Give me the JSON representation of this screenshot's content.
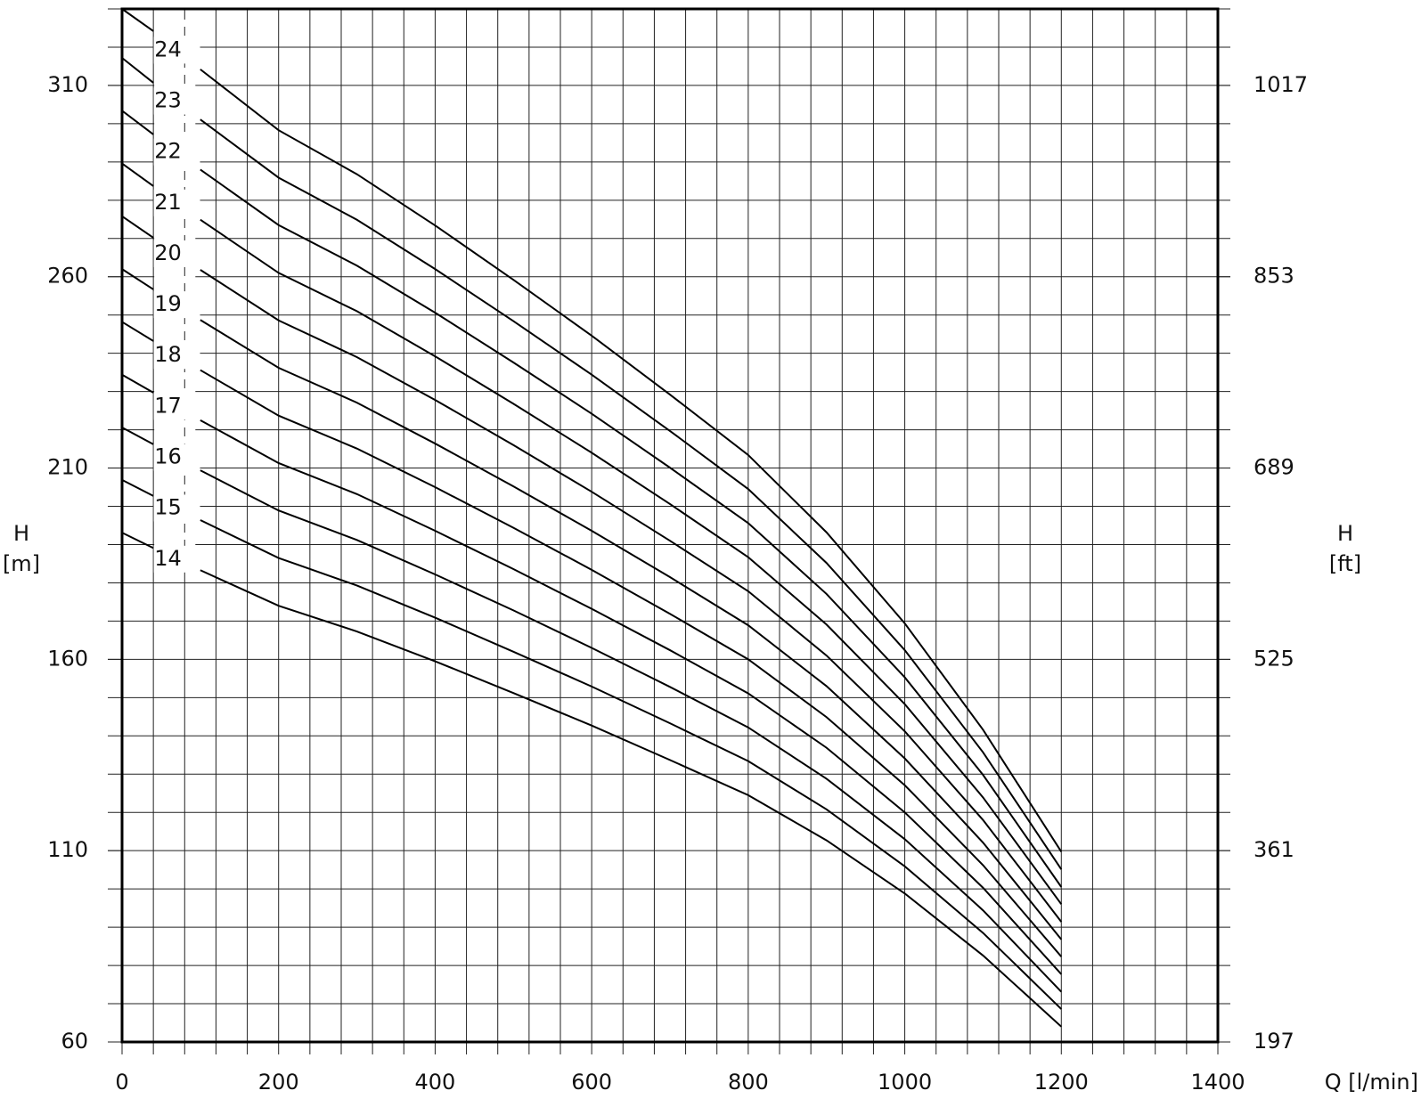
{
  "chart_data": {
    "type": "line",
    "xlabel": "Q [l/min]",
    "ylabel": "H",
    "yunit": "[m]",
    "y2label": "H",
    "y2unit": "[ft]",
    "x": [
      0,
      40,
      70,
      100,
      200,
      300,
      400,
      500,
      600,
      700,
      800,
      900,
      1000,
      1100,
      1200
    ],
    "series": [
      {
        "name": "14",
        "color": "#000000",
        "values": [
          193.1,
          189.1,
          null,
          183.3,
          174.0,
          167.3,
          159.5,
          151.2,
          142.7,
          133.7,
          124.5,
          112.7,
          98.8,
          82.6,
          64.0
        ]
      },
      {
        "name": "15",
        "color": "#000000",
        "values": [
          206.9,
          202.7,
          null,
          196.4,
          186.5,
          179.3,
          170.9,
          162.0,
          152.9,
          143.3,
          133.4,
          120.8,
          105.9,
          88.5,
          68.6
        ]
      },
      {
        "name": "16",
        "color": "#000000",
        "values": [
          220.6,
          216.2,
          null,
          209.4,
          198.9,
          191.2,
          182.2,
          172.8,
          163.0,
          152.8,
          142.2,
          128.8,
          113.0,
          94.4,
          73.1
        ]
      },
      {
        "name": "17",
        "color": "#000000",
        "values": [
          234.4,
          229.7,
          null,
          222.5,
          211.3,
          203.2,
          193.6,
          183.6,
          173.2,
          162.4,
          151.1,
          136.9,
          120.0,
          100.3,
          77.7
        ]
      },
      {
        "name": "18",
        "color": "#000000",
        "values": [
          248.2,
          243.2,
          null,
          235.6,
          223.7,
          215.1,
          205.0,
          194.4,
          183.4,
          171.9,
          160.0,
          144.9,
          127.1,
          106.2,
          82.3
        ]
      },
      {
        "name": "19",
        "color": "#000000",
        "values": [
          262.0,
          256.7,
          null,
          248.7,
          236.2,
          227.1,
          216.4,
          205.2,
          193.6,
          181.5,
          168.9,
          153.0,
          134.1,
          112.1,
          86.8
        ]
      },
      {
        "name": "20",
        "color": "#000000",
        "values": [
          275.8,
          270.2,
          null,
          261.8,
          248.6,
          239.0,
          227.8,
          216.0,
          203.8,
          191.0,
          177.8,
          161.0,
          141.2,
          118.0,
          91.4
        ]
      },
      {
        "name": "21",
        "color": "#000000",
        "values": [
          289.6,
          283.7,
          null,
          274.9,
          261.0,
          251.0,
          239.2,
          226.8,
          214.0,
          200.6,
          186.7,
          169.1,
          148.3,
          123.9,
          96.0
        ]
      },
      {
        "name": "22",
        "color": "#000000",
        "values": [
          303.4,
          297.2,
          null,
          288.0,
          273.5,
          262.9,
          250.6,
          237.6,
          224.2,
          210.1,
          195.6,
          177.1,
          155.3,
          129.8,
          100.5
        ]
      },
      {
        "name": "23",
        "color": "#000000",
        "values": [
          317.2,
          310.7,
          null,
          301.1,
          285.9,
          274.9,
          262.0,
          248.4,
          234.4,
          219.7,
          204.5,
          185.2,
          162.4,
          135.7,
          105.1
        ]
      },
      {
        "name": "24",
        "color": "#000000",
        "values": [
          330.0,
          324.2,
          null,
          314.2,
          298.3,
          286.8,
          273.4,
          259.2,
          244.6,
          229.2,
          213.4,
          193.2,
          169.4,
          141.6,
          109.7
        ]
      }
    ],
    "xlim": [
      0,
      1400
    ],
    "xticks": [
      0,
      200,
      400,
      600,
      800,
      1000,
      1200,
      1400
    ],
    "ylim": [
      60,
      330
    ],
    "yticks": [
      60,
      110,
      160,
      210,
      260,
      310
    ],
    "y2lim": [
      197,
      1082.6
    ],
    "y2ticks": [
      197,
      361,
      525,
      689,
      853,
      1017
    ],
    "grid": true,
    "xgrid": [
      0,
      40,
      80,
      120,
      160,
      200,
      240,
      280,
      320,
      360,
      400,
      440,
      480,
      520,
      560,
      600,
      640,
      680,
      720,
      760,
      800,
      840,
      880,
      920,
      960,
      1000,
      1040,
      1080,
      1120,
      1160,
      1200,
      1240,
      1280,
      1320,
      1360,
      1400
    ],
    "ygrid": [
      60,
      70,
      80,
      90,
      100,
      110,
      120,
      130,
      140,
      150,
      160,
      170,
      180,
      190,
      200,
      210,
      220,
      230,
      240,
      250,
      260,
      270,
      280,
      290,
      300,
      310,
      320,
      330
    ]
  }
}
